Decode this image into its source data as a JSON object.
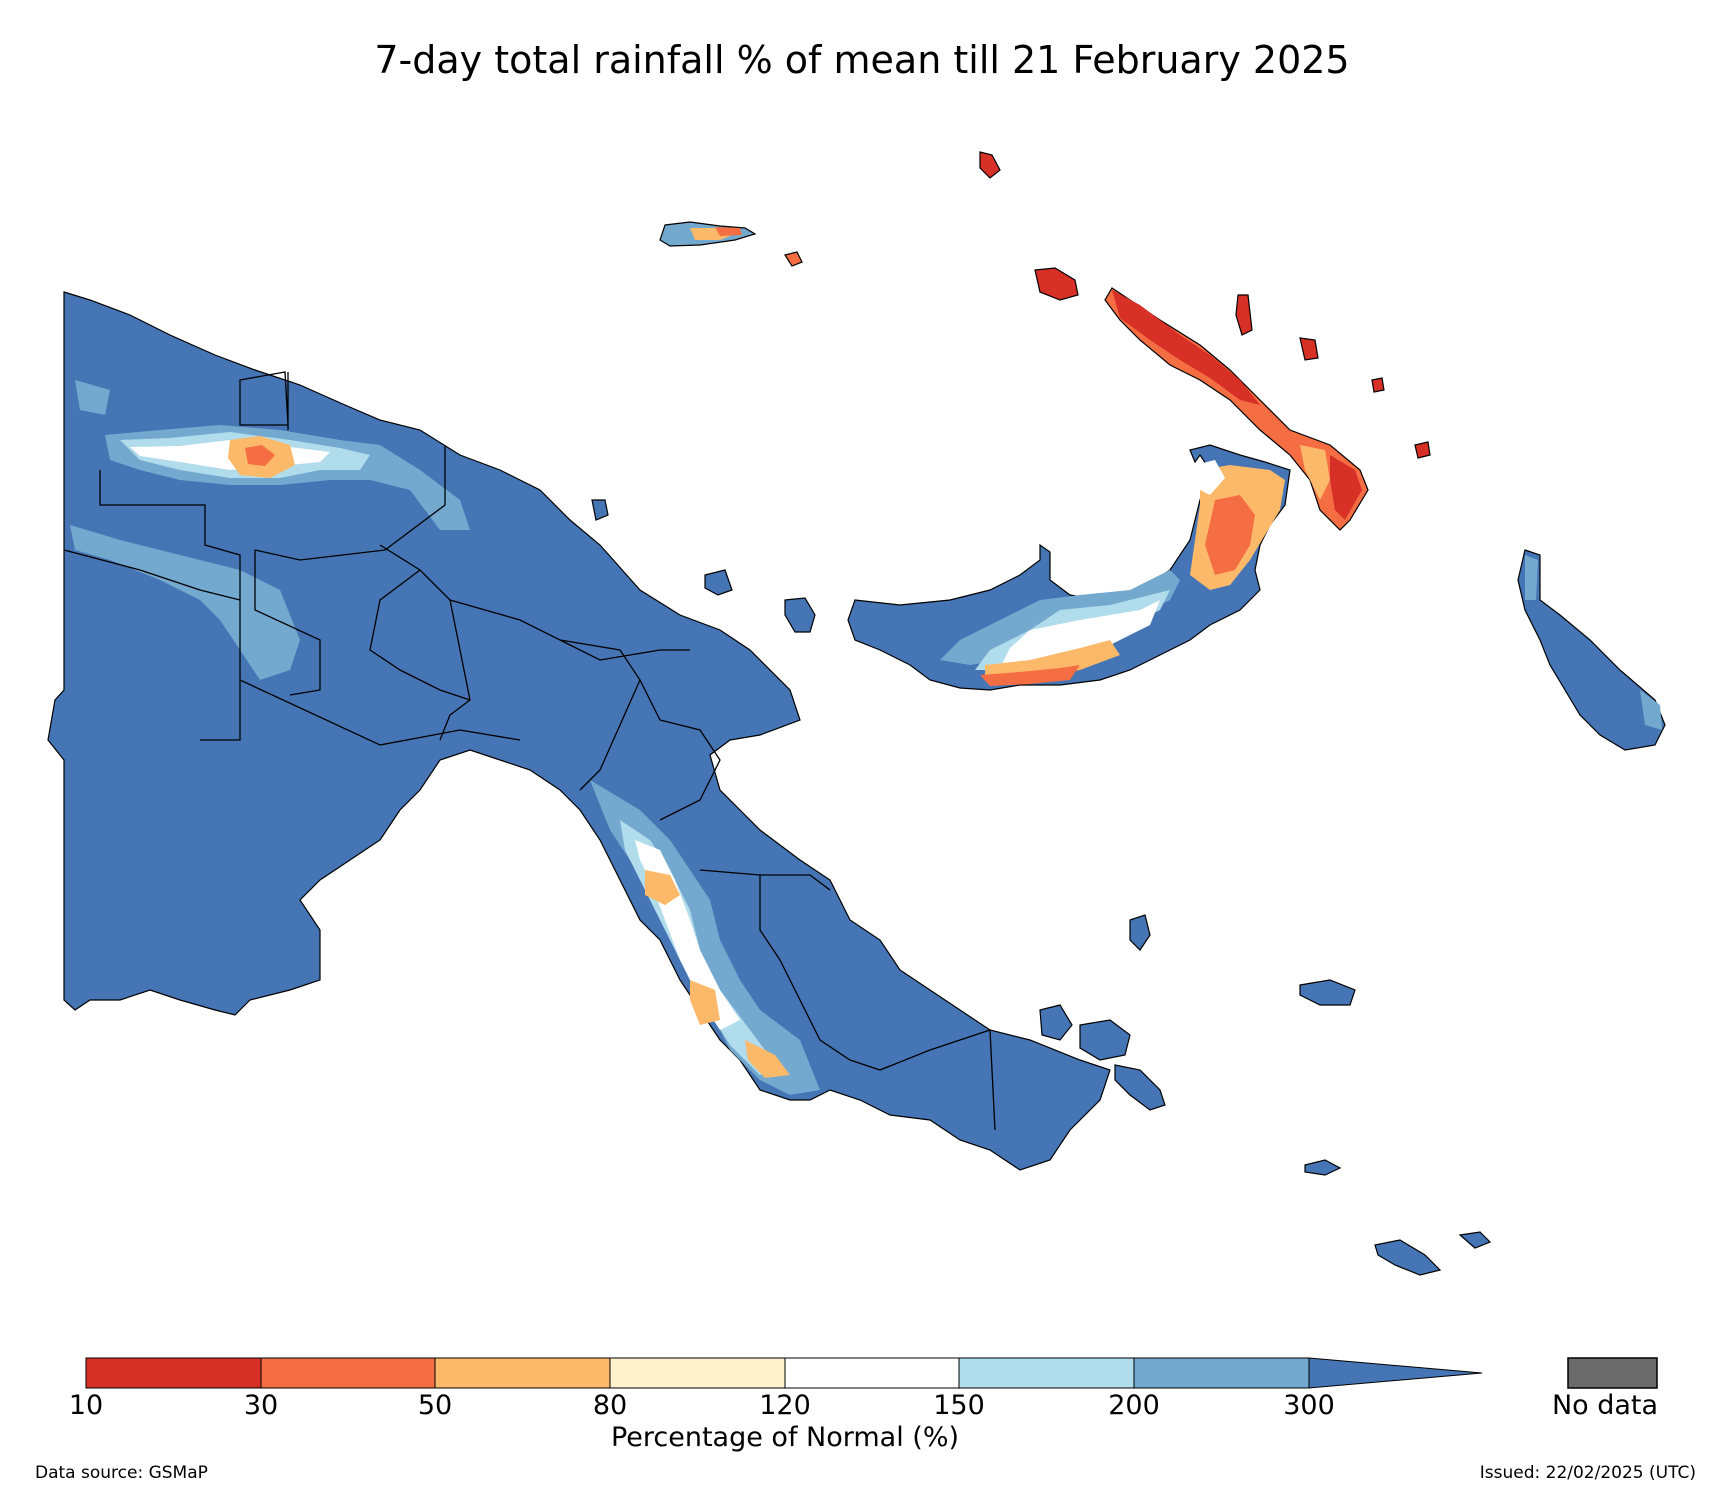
{
  "title": "7-day total rainfall % of mean till 21 February 2025",
  "legend": {
    "label": "Percentage of Normal (%)",
    "ticks": [
      "10",
      "30",
      "50",
      "80",
      "120",
      "150",
      "200",
      "300"
    ],
    "bins": [
      {
        "range": "10-30",
        "color": "#d73027"
      },
      {
        "range": "30-50",
        "color": "#f46d43"
      },
      {
        "range": "50-80",
        "color": "#fdb96a"
      },
      {
        "range": "80-120",
        "color": "#fff2cc"
      },
      {
        "range": "120-150",
        "color": "#ffffff"
      },
      {
        "range": "150-200",
        "color": "#b1dcec"
      },
      {
        "range": "200-300",
        "color": "#74a9cf"
      },
      {
        "range": ">300",
        "color": "#4575b4"
      }
    ],
    "nodata_label": "No data",
    "nodata_color": "#6b6b6b"
  },
  "footer": {
    "source": "Data source: GSMaP",
    "issued": "Issued: 22/02/2025 (UTC)"
  }
}
